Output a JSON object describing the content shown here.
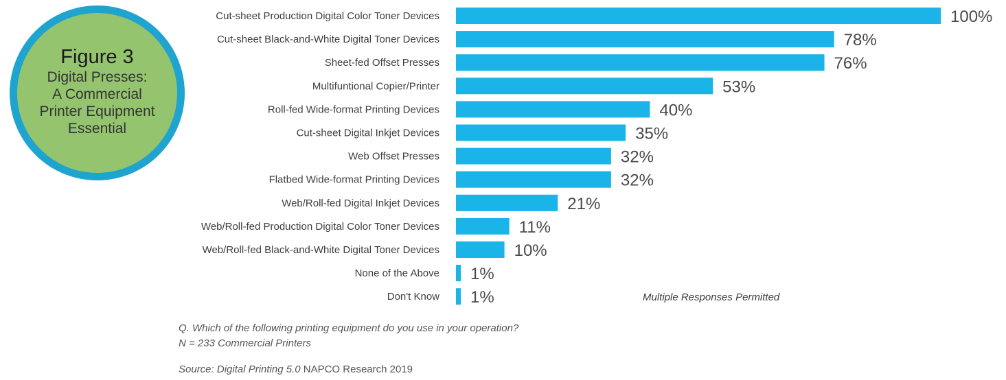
{
  "badge": {
    "title": "Figure 3",
    "subtitle": "Digital Presses:\nA Commercial\nPrinter Equipment\nEssential"
  },
  "colors": {
    "bar": "#1ab4e8",
    "badge_fill": "#95c46f",
    "badge_ring": "#1fa3cf"
  },
  "chart_data": {
    "type": "bar",
    "orientation": "horizontal",
    "categories": [
      "Cut-sheet Production Digital Color Toner Devices",
      "Cut-sheet Black-and-White Digital Toner Devices",
      "Sheet-fed Offset Presses",
      "Multifuntional Copier/Printer",
      "Roll-fed Wide-format Printing Devices",
      "Cut-sheet Digital Inkjet Devices",
      "Web Offset Presses",
      "Flatbed Wide-format Printing Devices",
      "Web/Roll-fed Digital Inkjet Devices",
      "Web/Roll-fed Production Digital Color Toner Devices",
      "Web/Roll-fed Black-and-White Digital Toner Devices",
      "None of the Above",
      "Don't Know"
    ],
    "values": [
      100,
      78,
      76,
      53,
      40,
      35,
      32,
      32,
      21,
      11,
      10,
      1,
      1
    ],
    "value_labels": [
      "100%",
      "78%",
      "76%",
      "53%",
      "40%",
      "35%",
      "32%",
      "32%",
      "21%",
      "11%",
      "10%",
      "1%",
      "1%"
    ],
    "xlim": [
      0,
      100
    ],
    "grid": false,
    "legend": "none"
  },
  "note": "Multiple Responses Permitted",
  "footer": {
    "question": "Q. Which of the following printing equipment do you use in your operation?",
    "n": "N = 233 Commercial Printers",
    "source_prefix": "Source: Digital Printing 5.0",
    "source_suffix": " NAPCO Research 2019"
  }
}
